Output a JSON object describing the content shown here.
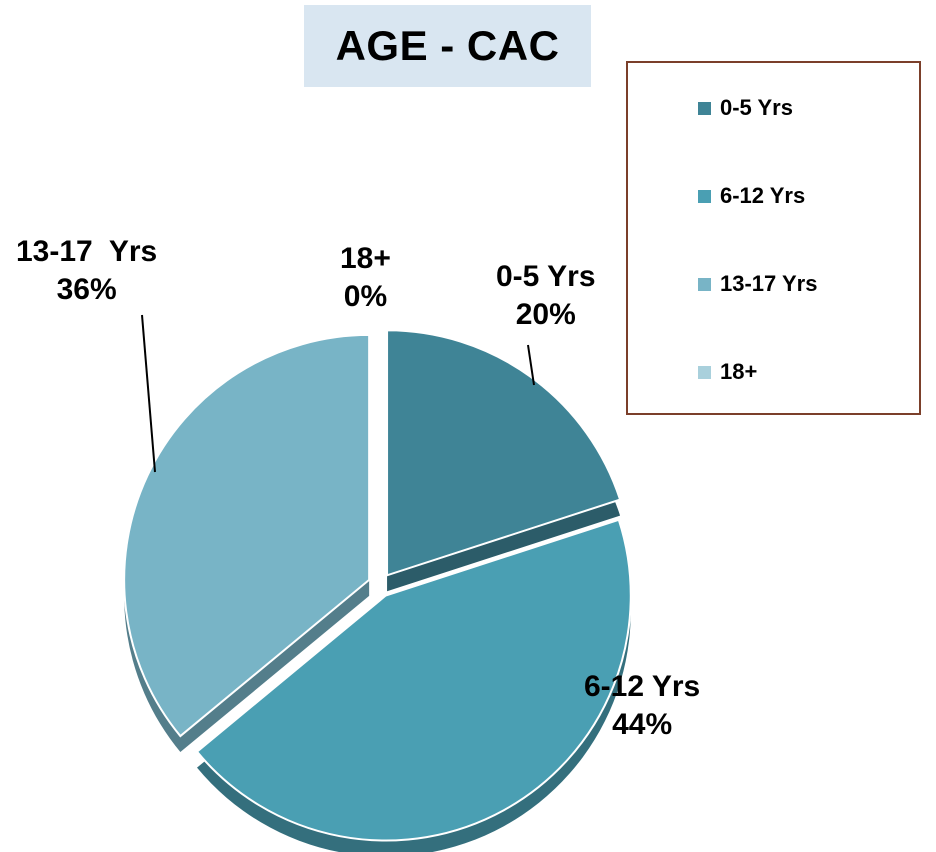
{
  "chart_data": {
    "type": "pie",
    "title": "AGE - CAC",
    "categories": [
      "0-5 Yrs",
      "6-12 Yrs",
      "13-17  Yrs",
      "18+"
    ],
    "values": [
      20,
      44,
      36,
      0
    ],
    "data_labels": [
      {
        "name": "0-5 Yrs",
        "value": "20%"
      },
      {
        "name": "6-12 Yrs",
        "value": "44%"
      },
      {
        "name": "13-17  Yrs",
        "value": "36%"
      },
      {
        "name": "18+",
        "value": "0%"
      }
    ],
    "colors": [
      "#3f8496",
      "#4a9fb3",
      "#78b4c6",
      "#a9d0dc"
    ],
    "legend": {
      "placement": "top-right",
      "entries": [
        "0-5 Yrs",
        "6-12 Yrs",
        "13-17  Yrs",
        "18+"
      ]
    }
  }
}
